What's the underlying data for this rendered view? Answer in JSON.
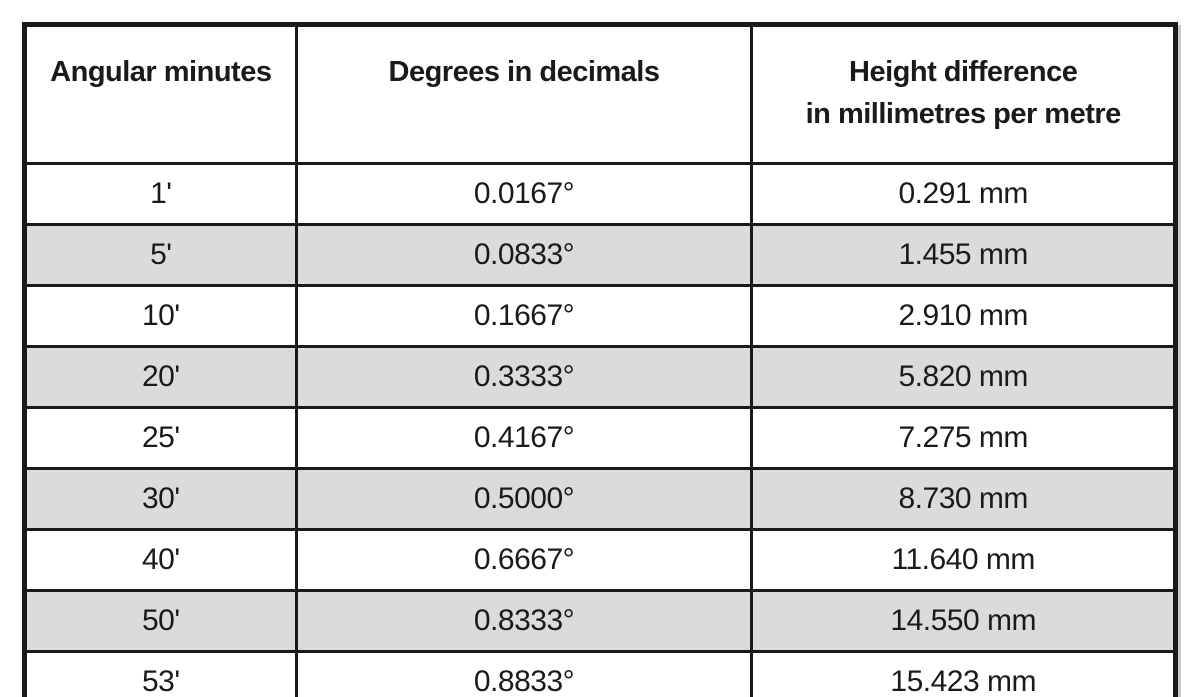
{
  "colors": {
    "border": "#1a1a1a",
    "text": "#1a1a1a",
    "row_shade": "#dbdbdb",
    "background": "#ffffff"
  },
  "table": {
    "headers": [
      {
        "lines": [
          "Angular minutes"
        ]
      },
      {
        "lines": [
          "Degrees in decimals"
        ]
      },
      {
        "lines": [
          "Height difference",
          "in millimetres per metre"
        ]
      }
    ],
    "rows": [
      {
        "cells": [
          "1'",
          "0.0167°",
          "0.291 mm"
        ]
      },
      {
        "cells": [
          "5'",
          "0.0833°",
          "1.455 mm"
        ]
      },
      {
        "cells": [
          "10'",
          "0.1667°",
          "2.910 mm"
        ]
      },
      {
        "cells": [
          "20'",
          "0.3333°",
          "5.820 mm"
        ]
      },
      {
        "cells": [
          "25'",
          "0.4167°",
          "7.275 mm"
        ]
      },
      {
        "cells": [
          "30'",
          "0.5000°",
          "8.730 mm"
        ]
      },
      {
        "cells": [
          "40'",
          "0.6667°",
          "11.640 mm"
        ]
      },
      {
        "cells": [
          "50'",
          "0.8333°",
          "14.550 mm"
        ]
      },
      {
        "cells": [
          "53'",
          "0.8833°",
          "15.423 mm"
        ]
      }
    ]
  }
}
